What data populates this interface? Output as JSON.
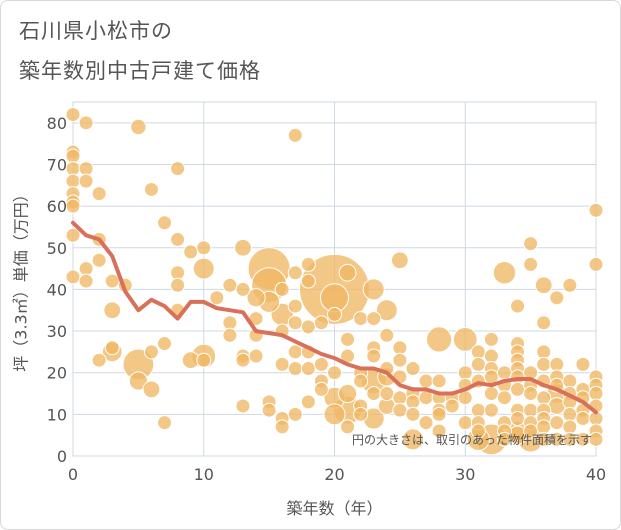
{
  "header": {
    "title_line1": "石川県小松市の",
    "title_line2": "築年数別中古戸建て価格"
  },
  "chart_data": {
    "type": "scatter",
    "xlabel": "築年数（年）",
    "ylabel": "坪（3.3㎡）単価（万円）",
    "xlim": [
      0,
      40
    ],
    "ylim": [
      0,
      85
    ],
    "xticks": [
      0,
      10,
      20,
      30,
      40
    ],
    "yticks": [
      0,
      10,
      20,
      30,
      40,
      50,
      60,
      70,
      80
    ],
    "grid": true,
    "note": "円の大きさは、取引のあった物件面積を示す",
    "colors": {
      "bubble": "#f0b764",
      "bubble_stroke": "#ffffff",
      "trend": "#d9705a",
      "grid": "#cfd8e3"
    },
    "points": [
      [
        0,
        82,
        1
      ],
      [
        0,
        73,
        1
      ],
      [
        0,
        72,
        1
      ],
      [
        0,
        69,
        1
      ],
      [
        0,
        66,
        1
      ],
      [
        0,
        63,
        1
      ],
      [
        0,
        61,
        1
      ],
      [
        0,
        60,
        1
      ],
      [
        0,
        53,
        1
      ],
      [
        0,
        43,
        1
      ],
      [
        1,
        80,
        1
      ],
      [
        1,
        69,
        1
      ],
      [
        1,
        66,
        1
      ],
      [
        1,
        45,
        1
      ],
      [
        1,
        42,
        1
      ],
      [
        2,
        63,
        1
      ],
      [
        2,
        52,
        1
      ],
      [
        2,
        47,
        1
      ],
      [
        2,
        23,
        1
      ],
      [
        3,
        42,
        1
      ],
      [
        3,
        35,
        1.2
      ],
      [
        3,
        26,
        1
      ],
      [
        3,
        25,
        1.4
      ],
      [
        4,
        41,
        1
      ],
      [
        5,
        79,
        1.1
      ],
      [
        5,
        22,
        2.2
      ],
      [
        5,
        18,
        1.3
      ],
      [
        6,
        64,
        1
      ],
      [
        6,
        25,
        1
      ],
      [
        6,
        16,
        1.2
      ],
      [
        7,
        56,
        1
      ],
      [
        7,
        27,
        1
      ],
      [
        7,
        8,
        1
      ],
      [
        8,
        69,
        1
      ],
      [
        8,
        52,
        1
      ],
      [
        8,
        44,
        1
      ],
      [
        8,
        41,
        1
      ],
      [
        8,
        35,
        1
      ],
      [
        9,
        49,
        1
      ],
      [
        9,
        23,
        1.2
      ],
      [
        10,
        50,
        1
      ],
      [
        10,
        45,
        1.5
      ],
      [
        10,
        24,
        1.7
      ],
      [
        10,
        23,
        1
      ],
      [
        11,
        38,
        1
      ],
      [
        12,
        41,
        1
      ],
      [
        12,
        32,
        1
      ],
      [
        12,
        29,
        1
      ],
      [
        13,
        50,
        1.2
      ],
      [
        13,
        40,
        1
      ],
      [
        13,
        24,
        1
      ],
      [
        13,
        23,
        1
      ],
      [
        13,
        12,
        1
      ],
      [
        14,
        38,
        1.3
      ],
      [
        14,
        33,
        1
      ],
      [
        14,
        29,
        1
      ],
      [
        14,
        24,
        1
      ],
      [
        15,
        45,
        3
      ],
      [
        15,
        41,
        2.5
      ],
      [
        15,
        37,
        1.5
      ],
      [
        15,
        13,
        1
      ],
      [
        15,
        11,
        1
      ],
      [
        16,
        40,
        1
      ],
      [
        16,
        34,
        1.6
      ],
      [
        16,
        30,
        1
      ],
      [
        16,
        22,
        1
      ],
      [
        16,
        9,
        1
      ],
      [
        16,
        7,
        1
      ],
      [
        17,
        77,
        1
      ],
      [
        17,
        44,
        1
      ],
      [
        17,
        36,
        1
      ],
      [
        17,
        32,
        1
      ],
      [
        17,
        25,
        1
      ],
      [
        17,
        21,
        1
      ],
      [
        17,
        10,
        1
      ],
      [
        18,
        46,
        1
      ],
      [
        18,
        42,
        1
      ],
      [
        18,
        31,
        1
      ],
      [
        18,
        25,
        1
      ],
      [
        18,
        21,
        1
      ],
      [
        18,
        13,
        1
      ],
      [
        19,
        32,
        1
      ],
      [
        19,
        22,
        1
      ],
      [
        19,
        18,
        1
      ],
      [
        19,
        16,
        1
      ],
      [
        20,
        40,
        5
      ],
      [
        20,
        38,
        2
      ],
      [
        20,
        34,
        1
      ],
      [
        20,
        20,
        1
      ],
      [
        20,
        14,
        1.5
      ],
      [
        20,
        10,
        1.5
      ],
      [
        21,
        44,
        1.2
      ],
      [
        21,
        28,
        1
      ],
      [
        21,
        24,
        1
      ],
      [
        21,
        15,
        1.3
      ],
      [
        21,
        11,
        2
      ],
      [
        21,
        7,
        1
      ],
      [
        22,
        33,
        1
      ],
      [
        22,
        20,
        1
      ],
      [
        22,
        18,
        1
      ],
      [
        22,
        12,
        1
      ],
      [
        22,
        10,
        1
      ],
      [
        23,
        40,
        1.5
      ],
      [
        23,
        33,
        1
      ],
      [
        23,
        26,
        1
      ],
      [
        23,
        24,
        1
      ],
      [
        23,
        18,
        1.8
      ],
      [
        23,
        15,
        1
      ],
      [
        23,
        9,
        1.5
      ],
      [
        24,
        35,
        1.5
      ],
      [
        24,
        29,
        1
      ],
      [
        24,
        21,
        1
      ],
      [
        24,
        19,
        1.3
      ],
      [
        24,
        15,
        1
      ],
      [
        24,
        12,
        1.2
      ],
      [
        25,
        47,
        1.2
      ],
      [
        25,
        26,
        1
      ],
      [
        25,
        23,
        1
      ],
      [
        25,
        19,
        1
      ],
      [
        25,
        14,
        1
      ],
      [
        25,
        11,
        1
      ],
      [
        26,
        21,
        1
      ],
      [
        26,
        15,
        1
      ],
      [
        26,
        13,
        1
      ],
      [
        26,
        10,
        1
      ],
      [
        26,
        4,
        1.5
      ],
      [
        27,
        18,
        1
      ],
      [
        27,
        14,
        1
      ],
      [
        27,
        8,
        1
      ],
      [
        28,
        28,
        1.8
      ],
      [
        28,
        18,
        1
      ],
      [
        28,
        14,
        1
      ],
      [
        28,
        11,
        1
      ],
      [
        28,
        10,
        1
      ],
      [
        28,
        6,
        1
      ],
      [
        29,
        14,
        1
      ],
      [
        29,
        12,
        1
      ],
      [
        30,
        28,
        1.7
      ],
      [
        30,
        20,
        1
      ],
      [
        30,
        17,
        1
      ],
      [
        30,
        14,
        1
      ],
      [
        30,
        8,
        1
      ],
      [
        31,
        25,
        1
      ],
      [
        31,
        22,
        1
      ],
      [
        31,
        18,
        1
      ],
      [
        31,
        11,
        1
      ],
      [
        31,
        8,
        1
      ],
      [
        31,
        6,
        1
      ],
      [
        31,
        4,
        1.6
      ],
      [
        32,
        28,
        1
      ],
      [
        32,
        24,
        1
      ],
      [
        32,
        21,
        1
      ],
      [
        32,
        19,
        1
      ],
      [
        32,
        15,
        1
      ],
      [
        32,
        11,
        1
      ],
      [
        32,
        4,
        2.2
      ],
      [
        33,
        44,
        1.6
      ],
      [
        33,
        20,
        1
      ],
      [
        33,
        17,
        1
      ],
      [
        33,
        14,
        1
      ],
      [
        33,
        8,
        1
      ],
      [
        33,
        6,
        1
      ],
      [
        33,
        4,
        1
      ],
      [
        34,
        36,
        1
      ],
      [
        34,
        27,
        1
      ],
      [
        34,
        25,
        1
      ],
      [
        34,
        23,
        1
      ],
      [
        34,
        21,
        1
      ],
      [
        34,
        19,
        1
      ],
      [
        34,
        16,
        1
      ],
      [
        34,
        11,
        1
      ],
      [
        34,
        9,
        1
      ],
      [
        34,
        6,
        1.4
      ],
      [
        34,
        5,
        1.3
      ],
      [
        35,
        51,
        1
      ],
      [
        35,
        46,
        1
      ],
      [
        35,
        20,
        1
      ],
      [
        35,
        17,
        1
      ],
      [
        35,
        15,
        1
      ],
      [
        35,
        11,
        1
      ],
      [
        35,
        8,
        1
      ],
      [
        35,
        6,
        1
      ],
      [
        35,
        4,
        1.8
      ],
      [
        36,
        41,
        1.2
      ],
      [
        36,
        32,
        1
      ],
      [
        36,
        25,
        1
      ],
      [
        36,
        22,
        1
      ],
      [
        36,
        18,
        1
      ],
      [
        36,
        14,
        1
      ],
      [
        36,
        11,
        1
      ],
      [
        36,
        9,
        1
      ],
      [
        36,
        7,
        1
      ],
      [
        36,
        4,
        1
      ],
      [
        37,
        38,
        1
      ],
      [
        37,
        22,
        1
      ],
      [
        37,
        19,
        1
      ],
      [
        37,
        17,
        1
      ],
      [
        37,
        15,
        1.4
      ],
      [
        37,
        12,
        1.2
      ],
      [
        37,
        8,
        1
      ],
      [
        37,
        4,
        1
      ],
      [
        38,
        41,
        1
      ],
      [
        38,
        18,
        1
      ],
      [
        38,
        15,
        1
      ],
      [
        38,
        13,
        1
      ],
      [
        38,
        10,
        1
      ],
      [
        38,
        7,
        1
      ],
      [
        38,
        4,
        1
      ],
      [
        39,
        22,
        1
      ],
      [
        39,
        16,
        1
      ],
      [
        39,
        14,
        1
      ],
      [
        39,
        11,
        1
      ],
      [
        39,
        9,
        1
      ],
      [
        39,
        4,
        1
      ],
      [
        40,
        59,
        1
      ],
      [
        40,
        46,
        1
      ],
      [
        40,
        19,
        1
      ],
      [
        40,
        17,
        1
      ],
      [
        40,
        15,
        1
      ],
      [
        40,
        12,
        1
      ],
      [
        40,
        9,
        1
      ],
      [
        40,
        6,
        1
      ],
      [
        40,
        4,
        1
      ]
    ],
    "trend": {
      "name": "",
      "x": [
        0,
        1,
        2,
        3,
        4,
        5,
        6,
        7,
        8,
        9,
        10,
        11,
        12,
        13,
        14,
        15,
        16,
        17,
        18,
        19,
        20,
        21,
        22,
        23,
        24,
        25,
        26,
        27,
        28,
        29,
        30,
        31,
        32,
        33,
        34,
        35,
        36,
        37,
        38,
        39,
        40
      ],
      "y": [
        56,
        53,
        52,
        48,
        39.5,
        35,
        37.5,
        36,
        33,
        37,
        37,
        35.5,
        35,
        34.5,
        30,
        29.5,
        29,
        27.5,
        26,
        24.5,
        23.5,
        22,
        21,
        21,
        20,
        17,
        16,
        16,
        15,
        15,
        16,
        17.5,
        17,
        18,
        18.5,
        18.5,
        17,
        16,
        14.5,
        13,
        10.5
      ]
    }
  }
}
